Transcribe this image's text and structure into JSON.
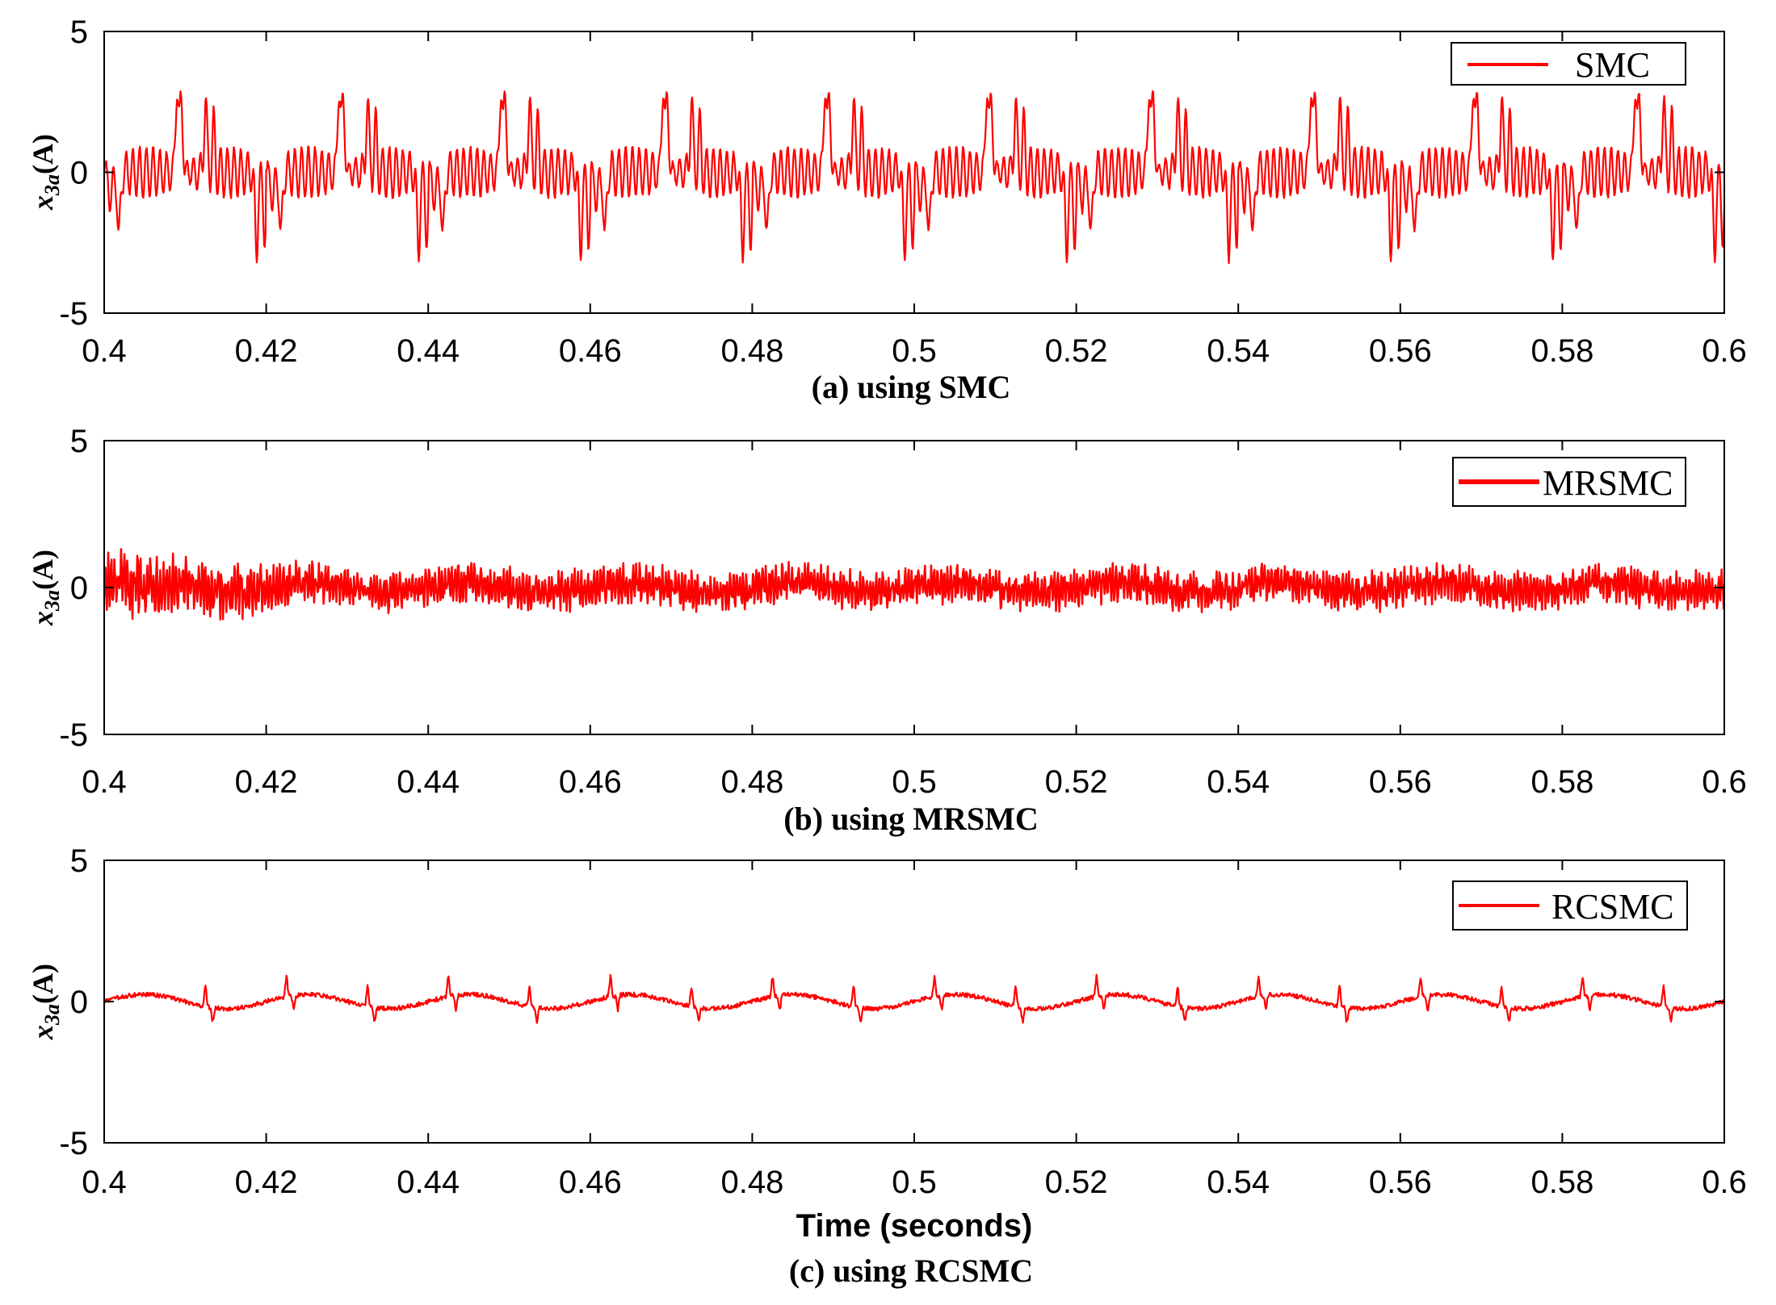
{
  "chart_data": [
    {
      "type": "line",
      "id": "a",
      "caption": "(a) using SMC",
      "ylabel": {
        "main": "x",
        "sub": "3a",
        "unit": "(A)"
      },
      "xlabel": "",
      "xlim": [
        0.4,
        0.6
      ],
      "ylim": [
        -5,
        5
      ],
      "xticks": [
        0.4,
        0.42,
        0.44,
        0.46,
        0.48,
        0.5,
        0.52,
        0.54,
        0.56,
        0.58,
        0.6
      ],
      "xtick_labels": [
        "0.4",
        "0.42",
        "0.44",
        "0.46",
        "0.48",
        "0.5",
        "0.52",
        "0.54",
        "0.56",
        "0.58",
        "0.6"
      ],
      "yticks": [
        -5,
        0,
        5
      ],
      "ytick_labels": [
        "-5",
        "0",
        "5"
      ],
      "grid": false,
      "legend": {
        "position": "top-right",
        "entries": [
          "SMC"
        ]
      },
      "series": [
        {
          "name": "SMC",
          "color": "#ff0000",
          "description": "periodic 20 ms switching current: +3 spikes near 0.409 and 0.4095 + 0.02k, -2.9 spikes near 0.4188 and 0.4198 + 0.02k, about 0.4-1.5 A ripple in between",
          "x_start": 0.4,
          "x_end": 0.6,
          "period": 0.02,
          "pos_spikes": [
            [
              0.409,
              3.0
            ],
            [
              0.4095,
              2.5
            ],
            [
              0.4125,
              2.5
            ],
            [
              0.4135,
              1.5
            ]
          ],
          "neg_spikes": [
            [
              0.4188,
              -2.9
            ],
            [
              0.4198,
              -2.4
            ],
            [
              0.4018,
              -2.5
            ],
            [
              0.4008,
              -1.2
            ]
          ],
          "ripple_amplitude": 0.9
        }
      ]
    },
    {
      "type": "line",
      "id": "b",
      "caption": "(b) using MRSMC",
      "ylabel": {
        "main": "x",
        "sub": "3a",
        "unit": "(A)"
      },
      "xlabel": "",
      "xlim": [
        0.4,
        0.6
      ],
      "ylim": [
        -5,
        5
      ],
      "xticks": [
        0.4,
        0.42,
        0.44,
        0.46,
        0.48,
        0.5,
        0.52,
        0.54,
        0.56,
        0.58,
        0.6
      ],
      "xtick_labels": [
        "0.4",
        "0.42",
        "0.44",
        "0.46",
        "0.48",
        "0.5",
        "0.52",
        "0.54",
        "0.56",
        "0.58",
        "0.6"
      ],
      "yticks": [
        -5,
        0,
        5
      ],
      "ytick_labels": [
        "-5",
        "0",
        "5"
      ],
      "grid": false,
      "legend": {
        "position": "top-right",
        "entries": [
          "MRSMC"
        ]
      },
      "series": [
        {
          "name": "MRSMC",
          "color": "#ff0000",
          "description": "high-frequency ripple of roughly +/-0.8 A, slightly larger (+/-1.3 A) at the start near 0.405-0.43",
          "x_start": 0.4,
          "x_end": 0.6,
          "ripple_amplitude": 0.75,
          "initial_peak": 1.3
        }
      ]
    },
    {
      "type": "line",
      "id": "c",
      "caption": "(c) using RCSMC",
      "ylabel": {
        "main": "x",
        "sub": "3a",
        "unit": "(A)"
      },
      "xlabel": "Time (seconds)",
      "xlim": [
        0.4,
        0.6
      ],
      "ylim": [
        -5,
        5
      ],
      "xticks": [
        0.4,
        0.42,
        0.44,
        0.46,
        0.48,
        0.5,
        0.52,
        0.54,
        0.56,
        0.58,
        0.6
      ],
      "xtick_labels": [
        "0.4",
        "0.42",
        "0.44",
        "0.46",
        "0.48",
        "0.5",
        "0.52",
        "0.54",
        "0.56",
        "0.58",
        "0.6"
      ],
      "yticks": [
        -5,
        0,
        5
      ],
      "ytick_labels": [
        "-5",
        "0",
        "5"
      ],
      "grid": false,
      "legend": {
        "position": "top-right",
        "entries": [
          "RCSMC"
        ]
      },
      "series": [
        {
          "name": "RCSMC",
          "color": "#ff0000",
          "description": "small current near 0 A: slow wave of about +/-0.25 A, period 20 ms, with +0.7 A spikes every 10 ms and -0.5 A dips",
          "x_start": 0.4,
          "x_end": 0.6,
          "wave_amplitude": 0.25,
          "wave_period": 0.02,
          "spike_positions": [
            0.4125,
            0.4225,
            0.4325,
            0.4425,
            0.4525,
            0.4625,
            0.4725,
            0.4825,
            0.4925,
            0.5025,
            0.5125,
            0.5225,
            0.5325,
            0.5425,
            0.5525,
            0.5625,
            0.5725,
            0.5825,
            0.5925
          ],
          "spike_peak": 0.7,
          "dip_value": -0.5
        }
      ]
    }
  ]
}
